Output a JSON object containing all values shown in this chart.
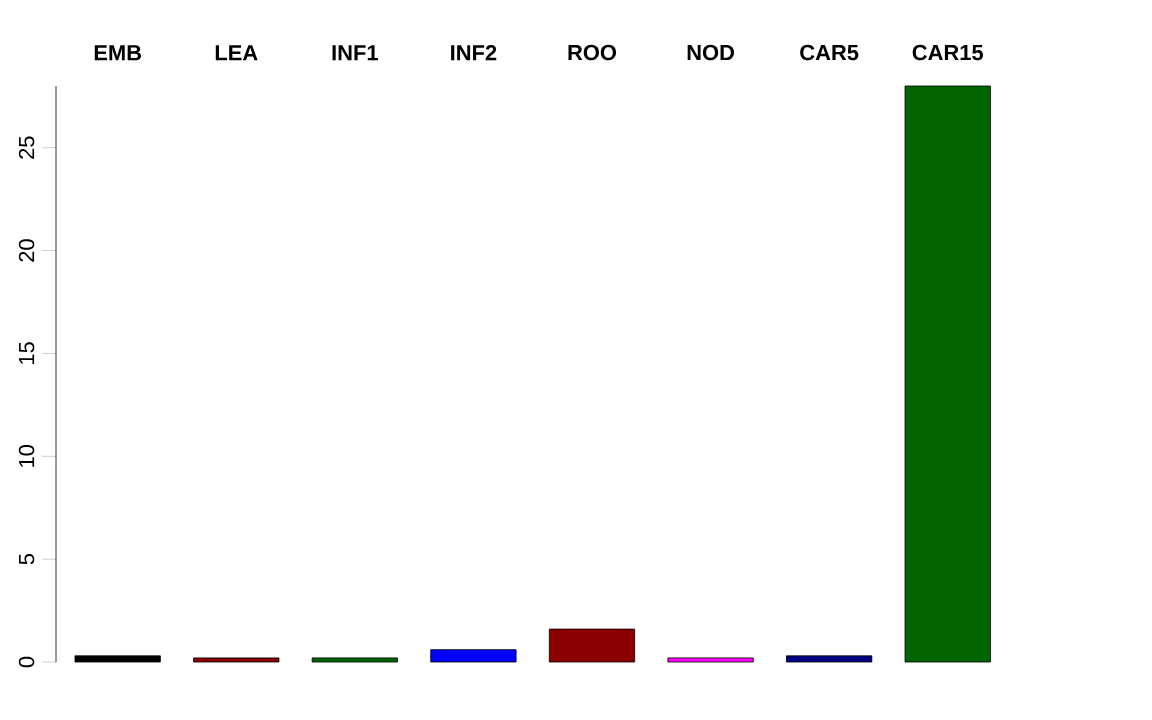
{
  "chart_data": {
    "type": "bar",
    "categories": [
      "EMB",
      "LEA",
      "INF1",
      "INF2",
      "ROO",
      "NOD",
      "CAR5",
      "CAR15"
    ],
    "values": [
      0.3,
      0.2,
      0.2,
      0.6,
      1.6,
      0.2,
      0.3,
      28
    ],
    "colors": [
      "#000000",
      "#8b0000",
      "#006400",
      "#0000ff",
      "#8b0000",
      "#ff00ff",
      "#000080",
      "#006400"
    ],
    "ylim": [
      0,
      28
    ],
    "yticks": [
      0,
      5,
      10,
      15,
      20,
      25
    ],
    "grid": false
  }
}
